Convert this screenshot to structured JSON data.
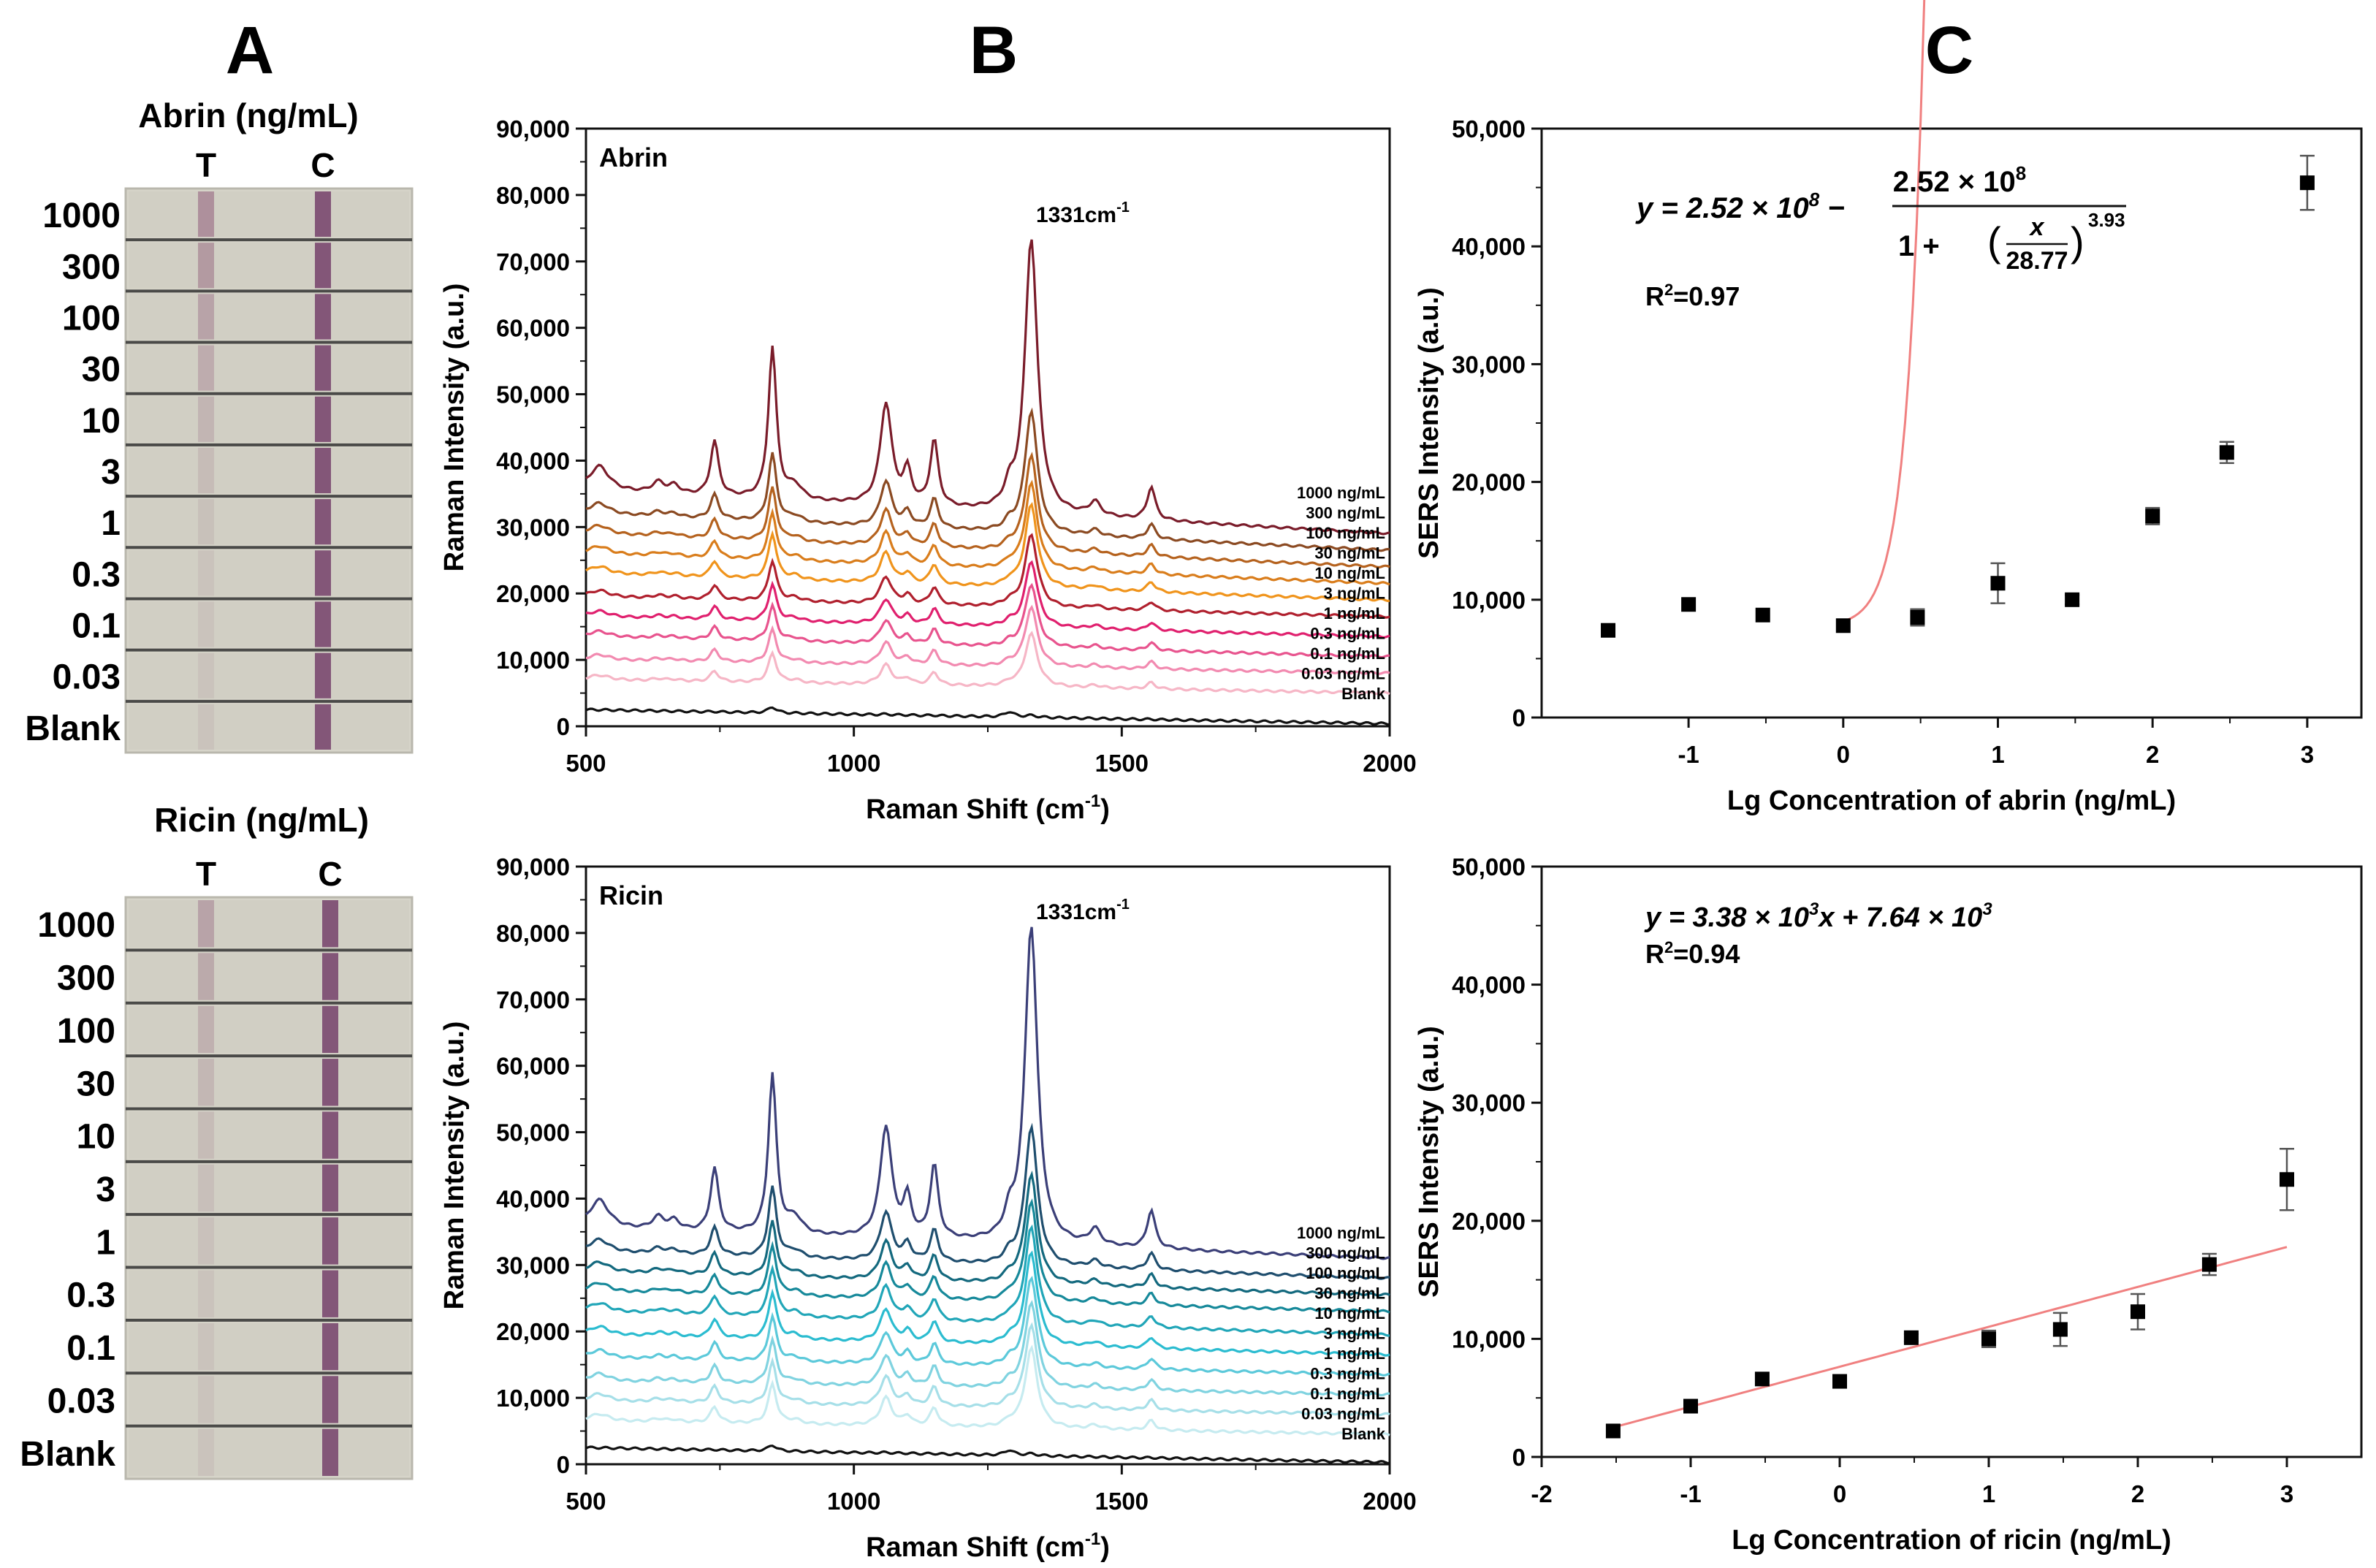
{
  "panel_labels": {
    "a": "A",
    "b": "B",
    "c": "C"
  },
  "strips": {
    "abrin": {
      "title": "Abrin (ng/mL)",
      "t_label": "T",
      "c_label": "C",
      "rows": [
        "1000",
        "300",
        "100",
        "30",
        "10",
        "3",
        "1",
        "0.3",
        "0.1",
        "0.03",
        "Blank"
      ],
      "t_line_intensity": [
        0.55,
        0.45,
        0.35,
        0.25,
        0.16,
        0.08,
        0.03,
        0.0,
        0.0,
        0.0,
        0.0
      ]
    },
    "ricin": {
      "title": "Ricin (ng/mL)",
      "t_label": "T",
      "c_label": "C",
      "rows": [
        "1000",
        "300",
        "100",
        "30",
        "10",
        "3",
        "1",
        "0.3",
        "0.1",
        "0.03",
        "Blank"
      ],
      "t_line_intensity": [
        0.35,
        0.28,
        0.2,
        0.14,
        0.08,
        0.04,
        0.02,
        0.0,
        0.0,
        0.0,
        0.0
      ]
    }
  },
  "chart_data": [
    {
      "id": "abrin-spectra",
      "type": "line",
      "title": "Abrin",
      "xlabel": "Raman Shift (cm",
      "xlabel_sup": "-1",
      "xlabel_end": ")",
      "ylabel": "Raman Intensity (a.u.)",
      "xlim": [
        500,
        2000
      ],
      "ylim": [
        0,
        90000
      ],
      "xticks": [
        500,
        1000,
        1500,
        2000
      ],
      "xtick_labels": [
        "500",
        "1000",
        "1500",
        "2000"
      ],
      "yticks": [
        0,
        10000,
        20000,
        30000,
        40000,
        50000,
        60000,
        70000,
        80000,
        90000
      ],
      "ytick_labels": [
        "0",
        "10,000",
        "20,000",
        "30,000",
        "40,000",
        "50,000",
        "60,000",
        "70,000",
        "80,000",
        "90,000"
      ],
      "peak_annotation": "1331cm",
      "peak_annotation_sup": "-1",
      "peaks": [
        {
          "center": 525,
          "width": 22,
          "rel": 0.09
        },
        {
          "center": 635,
          "width": 14,
          "rel": 0.04
        },
        {
          "center": 665,
          "width": 12,
          "rel": 0.03
        },
        {
          "center": 740,
          "width": 9,
          "rel": 0.2
        },
        {
          "center": 848,
          "width": 9,
          "rel": 0.55
        },
        {
          "center": 890,
          "width": 16,
          "rel": 0.05
        },
        {
          "center": 1060,
          "width": 13,
          "rel": 0.37
        },
        {
          "center": 1100,
          "width": 9,
          "rel": 0.12
        },
        {
          "center": 1150,
          "width": 9,
          "rel": 0.24
        },
        {
          "center": 1290,
          "width": 10,
          "rel": 0.12
        },
        {
          "center": 1331,
          "width": 14,
          "rel": 1.0
        },
        {
          "center": 1450,
          "width": 12,
          "rel": 0.05
        },
        {
          "center": 1555,
          "width": 9,
          "rel": 0.12
        }
      ],
      "series": [
        {
          "name": "1000 ng/mL",
          "baseline_start": 35500,
          "baseline_end": 29000,
          "peak_height": 41500,
          "color": "#7a1c2a"
        },
        {
          "name": "300 ng/mL",
          "baseline_start": 32000,
          "baseline_end": 26500,
          "peak_height": 18500,
          "color": "#8b4a22"
        },
        {
          "name": "100 ng/mL",
          "baseline_start": 29000,
          "baseline_end": 24000,
          "peak_height": 14500,
          "color": "#b5621e"
        },
        {
          "name": "30 ng/mL",
          "baseline_start": 26000,
          "baseline_end": 21500,
          "peak_height": 13000,
          "color": "#d97d1c"
        },
        {
          "name": "10 ng/mL",
          "baseline_start": 23000,
          "baseline_end": 19000,
          "peak_height": 12500,
          "color": "#f0941c"
        },
        {
          "name": "3 ng/mL",
          "baseline_start": 19500,
          "baseline_end": 16500,
          "peak_height": 11000,
          "color": "#b0202e"
        },
        {
          "name": "1 ng/mL",
          "baseline_start": 16500,
          "baseline_end": 13500,
          "peak_height": 10000,
          "color": "#e0206e"
        },
        {
          "name": "0.3 ng/mL",
          "baseline_start": 13500,
          "baseline_end": 10500,
          "peak_height": 9500,
          "color": "#e8548e"
        },
        {
          "name": "0.1 ng/mL",
          "baseline_start": 10000,
          "baseline_end": 8000,
          "peak_height": 9000,
          "color": "#f28ab0"
        },
        {
          "name": "0.03 ng/mL",
          "baseline_start": 7000,
          "baseline_end": 5000,
          "peak_height": 8000,
          "color": "#f6b6c6"
        },
        {
          "name": "Blank",
          "baseline_start": 2500,
          "baseline_end": 400,
          "peak_height": 900,
          "color": "#111111"
        }
      ]
    },
    {
      "id": "ricin-spectra",
      "type": "line",
      "title": "Ricin",
      "xlabel": "Raman Shift (cm",
      "xlabel_sup": "-1",
      "xlabel_end": ")",
      "ylabel": "Raman Intensity (a.u.)",
      "xlim": [
        500,
        2000
      ],
      "ylim": [
        0,
        90000
      ],
      "xticks": [
        500,
        1000,
        1500,
        2000
      ],
      "xtick_labels": [
        "500",
        "1000",
        "1500",
        "2000"
      ],
      "yticks": [
        0,
        10000,
        20000,
        30000,
        40000,
        50000,
        60000,
        70000,
        80000,
        90000
      ],
      "ytick_labels": [
        "0",
        "10,000",
        "20,000",
        "30,000",
        "40,000",
        "50,000",
        "60,000",
        "70,000",
        "80,000",
        "90,000"
      ],
      "peak_annotation": "1331cm",
      "peak_annotation_sup": "-1",
      "peaks": [
        {
          "center": 525,
          "width": 22,
          "rel": 0.09
        },
        {
          "center": 635,
          "width": 14,
          "rel": 0.04
        },
        {
          "center": 665,
          "width": 12,
          "rel": 0.03
        },
        {
          "center": 740,
          "width": 9,
          "rel": 0.2
        },
        {
          "center": 848,
          "width": 9,
          "rel": 0.5
        },
        {
          "center": 890,
          "width": 16,
          "rel": 0.05
        },
        {
          "center": 1060,
          "width": 13,
          "rel": 0.35
        },
        {
          "center": 1100,
          "width": 9,
          "rel": 0.12
        },
        {
          "center": 1150,
          "width": 9,
          "rel": 0.23
        },
        {
          "center": 1290,
          "width": 10,
          "rel": 0.12
        },
        {
          "center": 1331,
          "width": 14,
          "rel": 1.0
        },
        {
          "center": 1450,
          "width": 12,
          "rel": 0.05
        },
        {
          "center": 1555,
          "width": 9,
          "rel": 0.12
        }
      ],
      "series": [
        {
          "name": "1000 ng/mL",
          "baseline_start": 35500,
          "baseline_end": 31000,
          "peak_height": 48000,
          "color": "#3b3f78"
        },
        {
          "name": "300 ng/mL",
          "baseline_start": 32000,
          "baseline_end": 28000,
          "peak_height": 21000,
          "color": "#1f4e6e"
        },
        {
          "name": "100 ng/mL",
          "baseline_start": 29000,
          "baseline_end": 25500,
          "peak_height": 16500,
          "color": "#13697e"
        },
        {
          "name": "30 ng/mL",
          "baseline_start": 26000,
          "baseline_end": 23000,
          "peak_height": 15000,
          "color": "#16899a"
        },
        {
          "name": "10 ng/mL",
          "baseline_start": 23000,
          "baseline_end": 19500,
          "peak_height": 14500,
          "color": "#21a6b8"
        },
        {
          "name": "3 ng/mL",
          "baseline_start": 19500,
          "baseline_end": 16500,
          "peak_height": 14000,
          "color": "#2bbcd0"
        },
        {
          "name": "1 ng/mL",
          "baseline_start": 16000,
          "baseline_end": 13500,
          "peak_height": 13500,
          "color": "#5cc9da"
        },
        {
          "name": "0.3 ng/mL",
          "baseline_start": 12500,
          "baseline_end": 10500,
          "peak_height": 13000,
          "color": "#80d3e0"
        },
        {
          "name": "0.1 ng/mL",
          "baseline_start": 9500,
          "baseline_end": 7500,
          "peak_height": 12500,
          "color": "#a6dfe8"
        },
        {
          "name": "0.03 ng/mL",
          "baseline_start": 6500,
          "baseline_end": 4500,
          "peak_height": 12000,
          "color": "#c6ebf0"
        },
        {
          "name": "Blank",
          "baseline_start": 2500,
          "baseline_end": 300,
          "peak_height": 900,
          "color": "#111111"
        }
      ]
    },
    {
      "id": "abrin-calibration",
      "type": "scatter",
      "xlabel": "Lg Concentration of abrin (ng/mL)",
      "ylabel": "SERS Intensity (a.u.)",
      "xlim": [
        -1.95,
        3.35
      ],
      "ylim": [
        0,
        50000
      ],
      "xticks": [
        -1,
        0,
        1,
        2,
        3
      ],
      "xtick_labels": [
        "-1",
        "0",
        "1",
        "2",
        "3"
      ],
      "yticks": [
        0,
        10000,
        20000,
        30000,
        40000,
        50000
      ],
      "ytick_labels": [
        "0",
        "10,000",
        "20,000",
        "30,000",
        "40,000",
        "50,000"
      ],
      "points": [
        {
          "x": -1.52,
          "y": 7400,
          "err": 0
        },
        {
          "x": -1.0,
          "y": 9600,
          "err": 0
        },
        {
          "x": -0.52,
          "y": 8700,
          "err": 0
        },
        {
          "x": 0.0,
          "y": 7800,
          "err": 0
        },
        {
          "x": 0.48,
          "y": 8500,
          "err": 700
        },
        {
          "x": 1.0,
          "y": 11400,
          "err": 1700
        },
        {
          "x": 1.48,
          "y": 10000,
          "err": 400
        },
        {
          "x": 2.0,
          "y": 17100,
          "err": 700
        },
        {
          "x": 2.48,
          "y": 22500,
          "err": 900
        },
        {
          "x": 3.0,
          "y": 45400,
          "err": 2300
        }
      ],
      "fit": {
        "model": "logistic",
        "A1": 7700,
        "A2": 252000000,
        "x0": 28.77,
        "p": 3.93,
        "x_range": [
          0,
          3
        ],
        "color": "#f08080"
      },
      "equation": {
        "lhs": "y = 2.52 × 10",
        "exp1": "8",
        "minus": " − ",
        "num": "2.52 × 10",
        "num_exp": "8",
        "den_one": "1 + ",
        "den_x": "x",
        "den_b": "28.77",
        "den_exp": "3.93"
      },
      "r2": {
        "label": "R",
        "sup": "2",
        "value": "=0.97"
      }
    },
    {
      "id": "ricin-calibration",
      "type": "scatter",
      "xlabel": "Lg Concentration of ricin (ng/mL)",
      "ylabel": "SERS Intensity (a.u.)",
      "xlim": [
        -2,
        3.5
      ],
      "ylim": [
        0,
        50000
      ],
      "xticks": [
        -2,
        -1,
        0,
        1,
        2,
        3
      ],
      "xtick_labels": [
        "-2",
        "-1",
        "0",
        "1",
        "2",
        "3"
      ],
      "yticks": [
        0,
        10000,
        20000,
        30000,
        40000,
        50000
      ],
      "ytick_labels": [
        "0",
        "10,000",
        "20,000",
        "30,000",
        "40,000",
        "50,000"
      ],
      "points": [
        {
          "x": -1.52,
          "y": 2200,
          "err": 0
        },
        {
          "x": -1.0,
          "y": 4300,
          "err": 400
        },
        {
          "x": -0.52,
          "y": 6600,
          "err": 0
        },
        {
          "x": 0.0,
          "y": 6400,
          "err": 0
        },
        {
          "x": 0.48,
          "y": 10100,
          "err": 300
        },
        {
          "x": 1.0,
          "y": 10000,
          "err": 700
        },
        {
          "x": 1.48,
          "y": 10800,
          "err": 1400
        },
        {
          "x": 2.0,
          "y": 12300,
          "err": 1500
        },
        {
          "x": 2.48,
          "y": 16300,
          "err": 900
        },
        {
          "x": 3.0,
          "y": 23500,
          "err": 2600
        }
      ],
      "fit": {
        "model": "linear",
        "slope": 3380,
        "intercept": 7640,
        "x_range": [
          -1.52,
          3.0
        ],
        "color": "#f08080"
      },
      "equation": {
        "text": "y = 3.38 × 10",
        "exp1": "3",
        "mid": "x + 7.64 × 10",
        "exp2": "3"
      },
      "r2": {
        "label": "R",
        "sup": "2",
        "value": "=0.94"
      }
    }
  ]
}
